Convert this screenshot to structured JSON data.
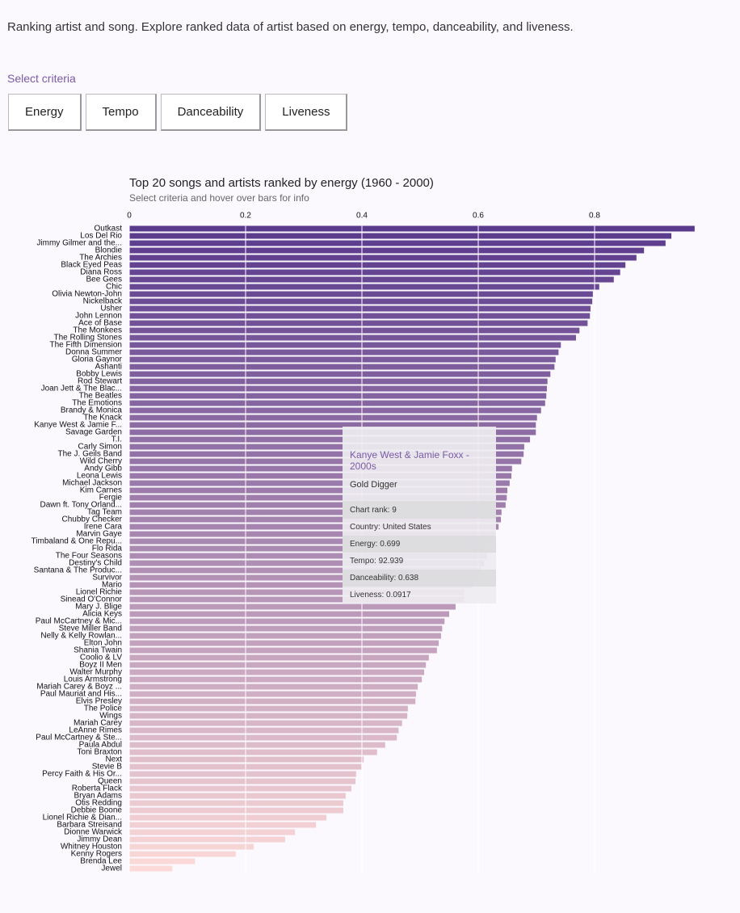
{
  "header": {
    "intro": "Ranking artist and song. Explore ranked data of artist based on energy, tempo, danceability, and liveness.",
    "select_label": "Select criteria",
    "buttons": [
      "Energy",
      "Tempo",
      "Danceability",
      "Liveness"
    ]
  },
  "chart_data": {
    "type": "bar",
    "orientation": "horizontal",
    "title": "Top 20 songs and artists ranked by energy (1960 - 2000)",
    "subtitle": "Select criteria and hover over bars for info",
    "categories": [
      "Outkast",
      "Los Del Rio",
      "Jimmy Gilmer and the...",
      "Blondie",
      "The Archies",
      "Black Eyed Peas",
      "Diana Ross",
      "Bee Gees",
      "Chic",
      "Olivia Newton-John",
      "Nickelback",
      "Usher",
      "John Lennon",
      "Ace of Base",
      "The Monkees",
      "The Rolling Stones",
      "The Fifth Dimension",
      "Donna Summer",
      "Gloria Gaynor",
      "Ashanti",
      "Bobby Lewis",
      "Rod Stewart",
      "Joan Jett & The Blac...",
      "The Beatles",
      "The Emotions",
      "Brandy & Monica",
      "The Knack",
      "Kanye West & Jamie F...",
      "Savage Garden",
      "T.I.",
      "Carly Simon",
      "The J. Geils Band",
      "Wild Cherry",
      "Andy Gibb",
      "Leona Lewis",
      "Michael Jackson",
      "Kim Carnes",
      "Fergie",
      "Dawn ft. Tony Orland...",
      "Tag Team",
      "Chubby Checker",
      "Irene Cara",
      "Marvin Gaye",
      "Timbaland & One Repu...",
      "Flo Rida",
      "The Four Seasons",
      "Destiny's Child",
      "Santana & The Produc...",
      "Survivor",
      "Mario",
      "Lionel Richie",
      "Sinead O'Connor",
      "Mary J. Blige",
      "Alicia Keys",
      "Paul McCartney & Mic...",
      "Steve Miller Band",
      "Nelly & Kelly Rowlan...",
      "Elton John",
      "Shania Twain",
      "Coolio & LV",
      "Boyz II Men",
      "Walter Murphy",
      "Louis Armstrong",
      "Mariah Carey & Boyz ...",
      "Paul Mauriat and His...",
      "Elvis Presley",
      "The Police",
      "Wings",
      "Mariah Carey",
      "LeAnne Rimes",
      "Paul McCartney & Ste...",
      "Paula Abdul",
      "Toni Braxton",
      "Next",
      "Stevie B",
      "Percy Faith & His Or...",
      "Queen",
      "Roberta Flack",
      "Bryan Adams",
      "Otis Redding",
      "Debbie Boone",
      "Lionel Richie & Dian...",
      "Barbara Streisand",
      "Dionne Warwick",
      "Jimmy Dean",
      "Whitney Houston",
      "Kenny Rogers",
      "Brenda Lee",
      "Jewel"
    ],
    "values": [
      0.972,
      0.932,
      0.922,
      0.885,
      0.872,
      0.853,
      0.844,
      0.833,
      0.808,
      0.797,
      0.796,
      0.793,
      0.792,
      0.788,
      0.774,
      0.768,
      0.742,
      0.738,
      0.733,
      0.731,
      0.724,
      0.719,
      0.718,
      0.717,
      0.715,
      0.708,
      0.701,
      0.699,
      0.699,
      0.689,
      0.679,
      0.678,
      0.674,
      0.658,
      0.657,
      0.654,
      0.65,
      0.649,
      0.647,
      0.64,
      0.639,
      0.635,
      0.63,
      0.625,
      0.62,
      0.615,
      0.61,
      0.605,
      0.6,
      0.59,
      0.576,
      0.576,
      0.561,
      0.55,
      0.542,
      0.538,
      0.536,
      0.532,
      0.529,
      0.515,
      0.51,
      0.507,
      0.503,
      0.496,
      0.493,
      0.492,
      0.479,
      0.478,
      0.469,
      0.463,
      0.46,
      0.44,
      0.426,
      0.403,
      0.399,
      0.39,
      0.389,
      0.382,
      0.372,
      0.368,
      0.368,
      0.339,
      0.321,
      0.285,
      0.268,
      0.214,
      0.183,
      0.113,
      0.074
    ],
    "color_range": [
      "#5a3a8c",
      "#fcdad8"
    ],
    "xlim": [
      0,
      1
    ],
    "xticks": [
      0,
      0.2,
      0.4,
      0.6,
      0.8
    ],
    "grid": true
  },
  "tooltip": {
    "title": "Kanye West & Jamie Foxx - 2000s",
    "song": "Gold Digger",
    "rows": [
      "Chart rank: 9",
      "Country: United States",
      "Energy: 0.699",
      "Tempo: 92.939",
      "Danceability: 0.638",
      "Liveness: 0.0917"
    ]
  }
}
